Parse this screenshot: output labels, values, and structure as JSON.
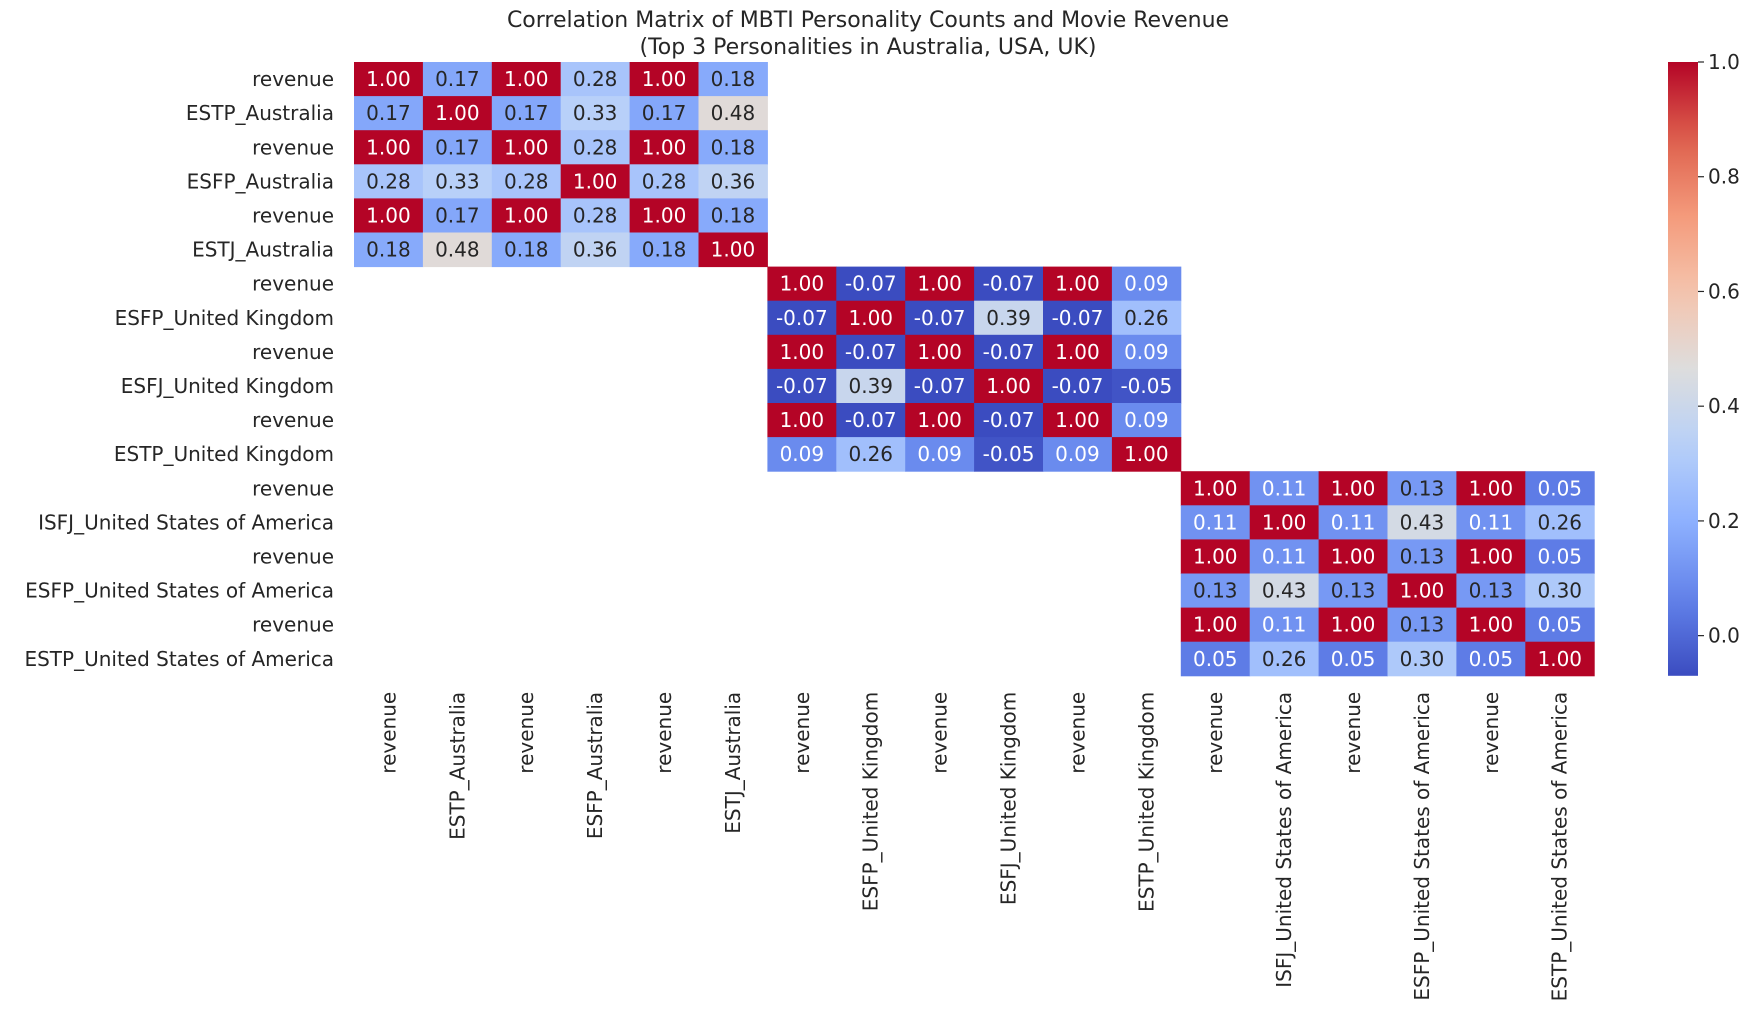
{
  "chart_data": {
    "type": "heatmap",
    "title_line1": "Correlation Matrix of MBTI Personality Counts and Movie Revenue",
    "title_line2": "(Top 3 Personalities in Australia, USA, UK)",
    "labels": [
      "revenue",
      "ESTP_Australia",
      "revenue",
      "ESFP_Australia",
      "revenue",
      "ESTJ_Australia",
      "revenue",
      "ESFP_United Kingdom",
      "revenue",
      "ESFJ_United Kingdom",
      "revenue",
      "ESTP_United Kingdom",
      "revenue",
      "ISFJ_United States of America",
      "revenue",
      "ESFP_United States of America",
      "revenue",
      "ESTP_United States of America"
    ],
    "blocks": [
      {
        "start": 0,
        "size": 6,
        "matrix": [
          [
            1.0,
            0.17,
            1.0,
            0.28,
            1.0,
            0.18
          ],
          [
            0.17,
            1.0,
            0.17,
            0.33,
            0.17,
            0.48
          ],
          [
            1.0,
            0.17,
            1.0,
            0.28,
            1.0,
            0.18
          ],
          [
            0.28,
            0.33,
            0.28,
            1.0,
            0.28,
            0.36
          ],
          [
            1.0,
            0.17,
            1.0,
            0.28,
            1.0,
            0.18
          ],
          [
            0.18,
            0.48,
            0.18,
            0.36,
            0.18,
            1.0
          ]
        ]
      },
      {
        "start": 6,
        "size": 6,
        "matrix": [
          [
            1.0,
            -0.07,
            1.0,
            -0.07,
            1.0,
            0.09
          ],
          [
            -0.07,
            1.0,
            -0.07,
            0.39,
            -0.07,
            0.26
          ],
          [
            1.0,
            -0.07,
            1.0,
            -0.07,
            1.0,
            0.09
          ],
          [
            -0.07,
            0.39,
            -0.07,
            1.0,
            -0.07,
            -0.05
          ],
          [
            1.0,
            -0.07,
            1.0,
            -0.07,
            1.0,
            0.09
          ],
          [
            0.09,
            0.26,
            0.09,
            -0.05,
            0.09,
            1.0
          ]
        ]
      },
      {
        "start": 12,
        "size": 6,
        "matrix": [
          [
            1.0,
            0.11,
            1.0,
            0.13,
            1.0,
            0.05
          ],
          [
            0.11,
            1.0,
            0.11,
            0.43,
            0.11,
            0.26
          ],
          [
            1.0,
            0.11,
            1.0,
            0.13,
            1.0,
            0.05
          ],
          [
            0.13,
            0.43,
            0.13,
            1.0,
            0.13,
            0.3
          ],
          [
            1.0,
            0.11,
            1.0,
            0.13,
            1.0,
            0.05
          ],
          [
            0.05,
            0.26,
            0.05,
            0.3,
            0.05,
            1.0
          ]
        ]
      }
    ],
    "value_format": "2 decimals",
    "colormap": "coolwarm",
    "vmin": -0.07,
    "vmax": 1.0,
    "colorbar_ticks": [
      "0.0",
      "0.2",
      "0.4",
      "0.6",
      "0.8",
      "1.0"
    ],
    "colorbar_tick_values": [
      0.0,
      0.2,
      0.4,
      0.6,
      0.8,
      1.0
    ],
    "colors": {
      "low": "#3b4cc0",
      "mid": "#dddddd",
      "high": "#b40426",
      "text_light": "#ffffff",
      "text_dark": "#262626",
      "axis_text": "#262626"
    },
    "grid": false,
    "legend": "colorbar-right"
  }
}
